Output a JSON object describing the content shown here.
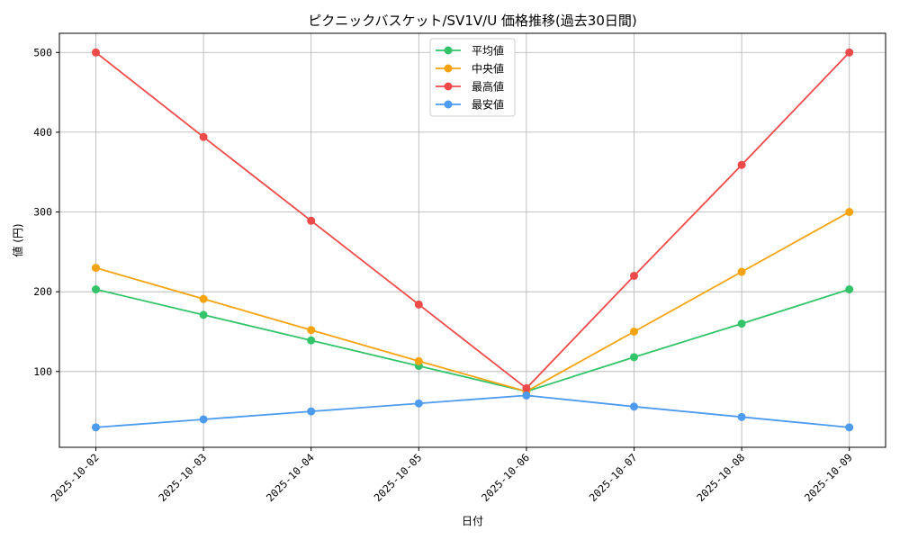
{
  "chart_data": {
    "type": "line",
    "title": "ピクニックバスケット/SV1V/U 価格推移(過去30日間)",
    "xlabel": "日付",
    "ylabel": "値 (円)",
    "categories": [
      "2025-10-02",
      "2025-10-03",
      "2025-10-04",
      "2025-10-05",
      "2025-10-06",
      "2025-10-07",
      "2025-10-08",
      "2025-10-09"
    ],
    "yticks": [
      100,
      200,
      300,
      400,
      500
    ],
    "ylim": [
      5,
      524
    ],
    "grid": true,
    "legend_position": "top-center",
    "series": [
      {
        "name": "平均値",
        "color": "#33c46a",
        "values": [
          203,
          171,
          139,
          107,
          75,
          118,
          160,
          203
        ]
      },
      {
        "name": "中央値",
        "color": "#f5a30f",
        "values": [
          230,
          191,
          152,
          113,
          75,
          150,
          225,
          300
        ]
      },
      {
        "name": "最高値",
        "color": "#ef4a4a",
        "values": [
          500,
          394,
          289,
          184,
          79,
          220,
          359,
          500
        ]
      },
      {
        "name": "最安値",
        "color": "#4d9bef",
        "values": [
          30,
          40,
          50,
          60,
          70,
          56,
          43,
          30
        ]
      }
    ]
  }
}
